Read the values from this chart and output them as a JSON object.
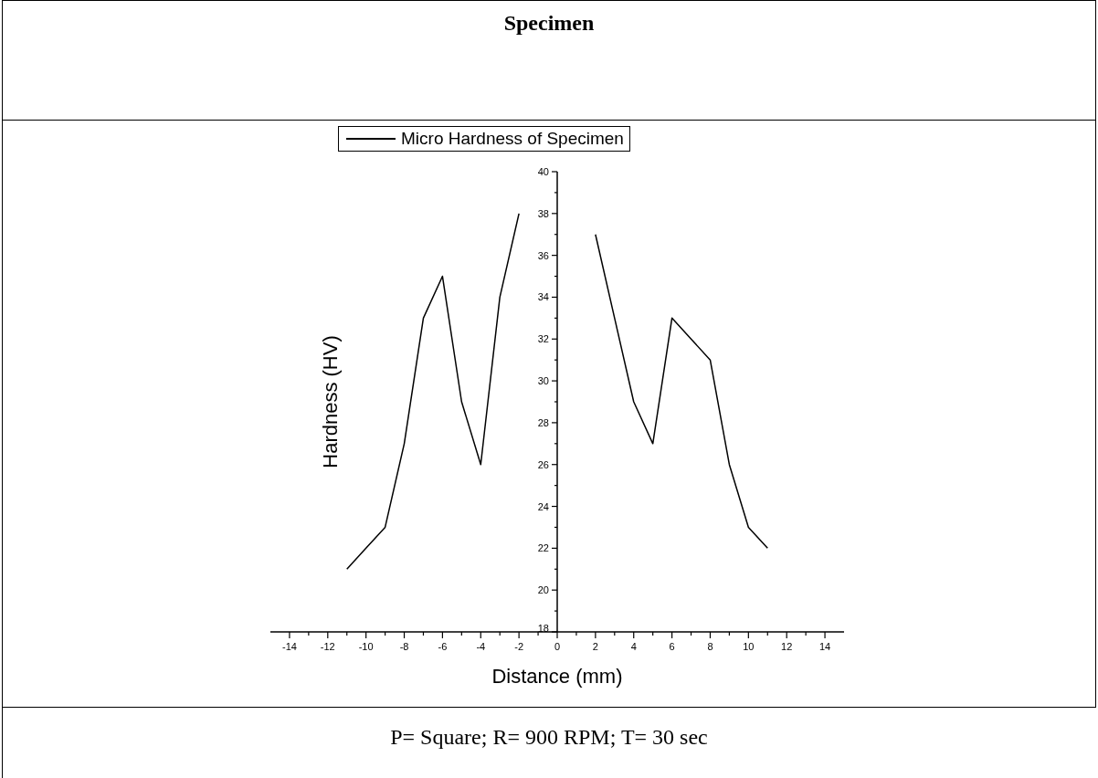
{
  "chart_data": {
    "type": "line",
    "title": "Specimen",
    "xlabel": "Distance (mm)",
    "ylabel": "Hardness (HV)",
    "x": [
      -11,
      -10,
      -9,
      -8,
      -7,
      -6,
      -5,
      -4,
      -3,
      -2,
      0,
      2,
      3,
      4,
      5,
      6,
      7,
      8,
      9,
      10,
      11
    ],
    "series": [
      {
        "name": "Micro Hardness of Specimen",
        "color": "#000000",
        "values": [
          21,
          22,
          23,
          27,
          33,
          35,
          29,
          26,
          34,
          38,
          null,
          37,
          33,
          29,
          27,
          33,
          32,
          31,
          26,
          23,
          22
        ]
      }
    ],
    "xlim": [
      -15,
      15
    ],
    "xticks": [
      -14,
      {
        "value": -13,
        "label": null
      },
      -12,
      {
        "value": -11,
        "label": null
      },
      -10,
      {
        "value": -9,
        "label": null
      },
      -8,
      {
        "value": -7,
        "label": null
      },
      -6,
      {
        "value": -5,
        "label": null
      },
      -4,
      {
        "value": -3,
        "label": null
      },
      -2,
      {
        "value": -1,
        "label": null
      },
      0,
      {
        "value": 1,
        "label": null
      },
      2,
      {
        "value": 3,
        "label": null
      },
      4,
      {
        "value": 5,
        "label": null
      },
      6,
      {
        "value": 7,
        "label": null
      },
      8,
      {
        "value": 9,
        "label": null
      },
      10,
      {
        "value": 11,
        "label": null
      },
      12,
      {
        "value": 13,
        "label": null
      },
      14
    ],
    "ylim": [
      18,
      40
    ],
    "yticks": [
      18,
      {
        "value": 19,
        "label": null
      },
      20,
      {
        "value": 21,
        "label": null
      },
      22,
      {
        "value": 23,
        "label": null
      },
      24,
      {
        "value": 25,
        "label": null
      },
      26,
      {
        "value": 27,
        "label": null
      },
      28,
      {
        "value": 29,
        "label": null
      },
      30,
      {
        "value": 31,
        "label": null
      },
      32,
      {
        "value": 33,
        "label": null
      },
      34,
      {
        "value": 35,
        "label": null
      },
      36,
      {
        "value": 37,
        "label": null
      },
      38,
      {
        "value": 39,
        "label": null
      },
      40
    ],
    "legend": "top",
    "annotations": [
      "P= Square; R= 900 RPM; T= 30 sec"
    ]
  }
}
